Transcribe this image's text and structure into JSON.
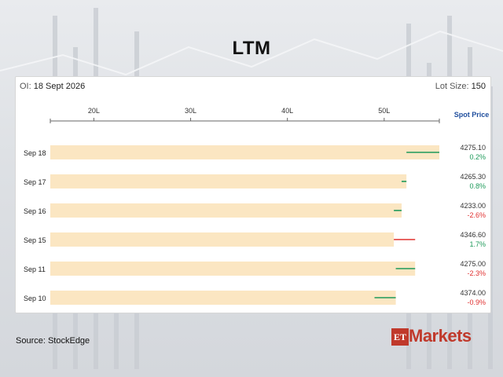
{
  "page": {
    "title": "LTM",
    "oi_label": "OI:",
    "oi_date": "18 Sept 2026",
    "lot_label": "Lot Size:",
    "lot_value": "150",
    "source": "Source:  StockEdge",
    "logo_prefix": "ET",
    "logo_text": "Markets"
  },
  "colors": {
    "bar": "#fbe6c2",
    "positive": "#1e9a5a",
    "negative": "#e0302f",
    "spot_header": "#1f4e9d",
    "logo": "#c0392b"
  },
  "chart_data": {
    "type": "bar",
    "orientation": "horizontal",
    "categories": [
      "Sep 18",
      "Sep 17",
      "Sep 16",
      "Sep 15",
      "Sep 11",
      "Sep 10"
    ],
    "open_interest_lakh": [
      55.7,
      52.3,
      51.8,
      51.0,
      53.2,
      51.2
    ],
    "oi_change_lakh": [
      {
        "from": 52.3,
        "to": 55.7,
        "direction": "up"
      },
      {
        "from": 51.8,
        "to": 52.3,
        "direction": "up"
      },
      {
        "from": 51.0,
        "to": 51.8,
        "direction": "up"
      },
      {
        "from": 51.0,
        "to": 53.2,
        "direction": "down"
      },
      {
        "from": 51.2,
        "to": 53.2,
        "direction": "up"
      },
      {
        "from": 49.0,
        "to": 51.2,
        "direction": "up"
      }
    ],
    "x_ticks": [
      "20L",
      "30L",
      "40L",
      "50L"
    ],
    "x_tick_values": [
      20,
      30,
      40,
      50
    ],
    "xlim": [
      15.5,
      55.7
    ],
    "spot_header": "Spot Price",
    "spot_price": [
      "4275.10",
      "4265.30",
      "4233.00",
      "4346.60",
      "4275.00",
      "4374.00"
    ],
    "spot_change": [
      "0.2%",
      "0.8%",
      "-2.6%",
      "1.7%",
      "-2.3%",
      "-0.9%"
    ],
    "spot_change_direction": [
      "up",
      "up",
      "down",
      "up",
      "down",
      "down"
    ],
    "grid": false
  }
}
